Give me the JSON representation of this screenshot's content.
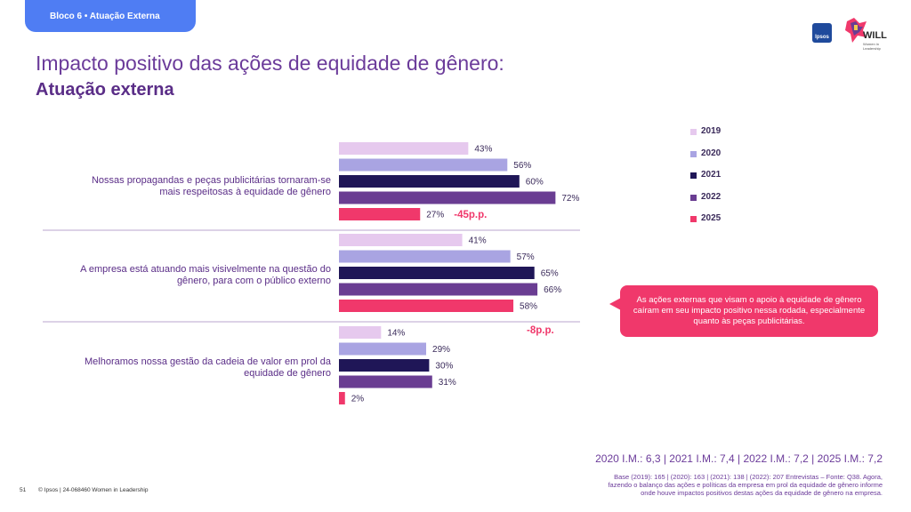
{
  "header": {
    "tab_label": "Bloco 6 • Atuação Externa",
    "title": "Impacto positivo das ações de equidade de gênero:",
    "subtitle": "Atuação externa",
    "ipsos_logo": "Ipsos",
    "will_logo": "WILL",
    "will_logo_sub": "Women in Leadership"
  },
  "chart_data": {
    "type": "bar",
    "orientation": "horizontal",
    "categories": [
      "Nossas propagandas e peças publicitárias tornaram-se mais respeitosas à equidade de gênero",
      "A empresa está atuando mais visivelmente na questão do gênero, para com o público externo",
      "Melhoramos nossa gestão da cadeia de valor em prol da equidade de gênero"
    ],
    "category_lines": [
      [
        "Nossas propagandas e peças publicitárias tornaram-se",
        "mais respeitosas à equidade de gênero"
      ],
      [
        "A empresa está atuando mais visivelmente na questão do",
        "gênero, para com o público externo"
      ],
      [
        "Melhoramos nossa gestão da cadeia de valor em prol da",
        "equidade de gênero"
      ]
    ],
    "series": [
      {
        "name": "2019",
        "color": "#e6c9ee",
        "values": [
          43,
          41,
          14
        ]
      },
      {
        "name": "2020",
        "color": "#a9a4e2",
        "values": [
          56,
          57,
          29
        ]
      },
      {
        "name": "2021",
        "color": "#1f1657",
        "values": [
          60,
          65,
          30
        ]
      },
      {
        "name": "2022",
        "color": "#6a3d92",
        "values": [
          72,
          66,
          31
        ]
      },
      {
        "name": "2025",
        "color": "#f0386b",
        "values": [
          27,
          58,
          2
        ]
      }
    ],
    "value_suffix": "%",
    "annotations": [
      "-45p.p.",
      "-8p.p."
    ],
    "xlim": [
      0,
      100
    ],
    "legend_position": "top-right"
  },
  "callout": {
    "text": "As ações externas que visam o apoio à equidade de gênero caíram em seu impacto positivo nessa rodada, especialmente quanto às peças publicitárias."
  },
  "im_summary": "2020 I.M.: 6,3 | 2021 I.M.: 7,4 | 2022 I.M.: 7,2 | 2025 I.M.: 7,2",
  "base_note": "Base (2019): 165 | (2020): 163 | (2021): 138 | (2022): 207 Entrevistas – Fonte: Q38. Agora, fazendo o balanço das ações e políticas da empresa em prol da equidade de gênero informe onde houve impactos positivos destas ações da equidade de gênero na empresa.",
  "footer": {
    "page_number": "51",
    "source": "© Ipsos | 24-068460 Women in Leadership"
  }
}
